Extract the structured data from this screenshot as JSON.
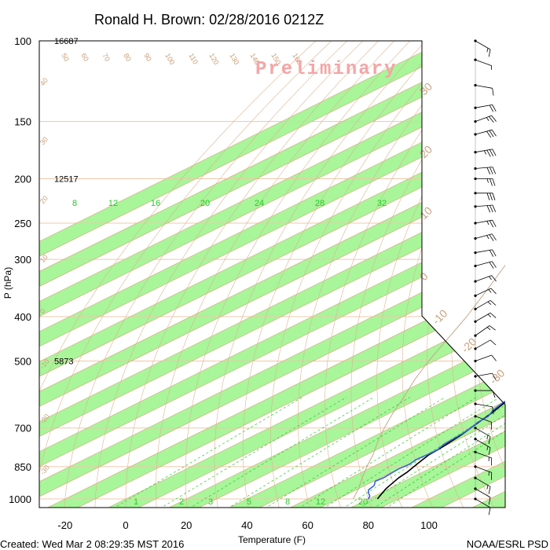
{
  "chart_data": {
    "type": "skew-t log-p sounding",
    "title": "Ronald H. Brown: 02/28/2016 0212Z",
    "xlabel": "Temperature (F)",
    "ylabel": "P (hPa)",
    "watermark": "Preliminary",
    "footer_left": "Created: Wed Mar  2 08:29:35 MST 2016",
    "footer_right": "NOAA/ESRL PSD",
    "xlim": [
      -27,
      113
    ],
    "ylim": [
      1050,
      100
    ],
    "x_ticks": [
      -20,
      0,
      20,
      40,
      60,
      80,
      100
    ],
    "y_ticks": [
      100,
      150,
      200,
      250,
      300,
      400,
      500,
      700,
      850,
      1000
    ],
    "grid": "on",
    "height_labels": [
      {
        "p": 100,
        "text": "16687"
      },
      {
        "p": 200,
        "text": "12517"
      },
      {
        "p": 500,
        "text": "5873"
      }
    ],
    "isotherm_labels_top": [
      "50",
      "60",
      "70",
      "80",
      "90",
      "100",
      "110",
      "120",
      "130",
      "140",
      "150",
      "160"
    ],
    "isotherm_labels_right": [
      "30",
      "20",
      "10",
      "0",
      "-10",
      "-20",
      "-30"
    ],
    "dry_adiabat_labels_left": [
      "40",
      "30",
      "20",
      "10",
      "0",
      "-10",
      "-20",
      "-30"
    ],
    "mixing_ratio_labels_upper": [
      "8",
      "12",
      "16",
      "20",
      "24",
      "28",
      "32"
    ],
    "mixing_ratio_labels_lower": [
      "1",
      "2",
      "3",
      "5",
      "8",
      "12",
      "20"
    ],
    "series": [
      {
        "role": "temperature",
        "color": "#000000",
        "points": [
          [
            1000,
            83
          ],
          [
            975,
            81
          ],
          [
            950,
            79
          ],
          [
            925,
            77.5
          ],
          [
            900,
            76
          ],
          [
            875,
            75
          ],
          [
            850,
            73.5
          ],
          [
            825,
            72
          ],
          [
            800,
            70.5
          ],
          [
            775,
            70
          ],
          [
            750,
            69
          ],
          [
            725,
            68
          ],
          [
            700,
            66.5
          ],
          [
            675,
            65
          ],
          [
            650,
            63.5
          ],
          [
            625,
            61.5
          ],
          [
            600,
            59.5
          ],
          [
            575,
            57.5
          ],
          [
            550,
            55
          ],
          [
            525,
            53
          ],
          [
            500,
            51
          ],
          [
            475,
            48.5
          ],
          [
            450,
            45.5
          ],
          [
            425,
            42.5
          ],
          [
            400,
            39.5
          ],
          [
            375,
            36
          ],
          [
            350,
            32
          ],
          [
            325,
            28.5
          ],
          [
            300,
            24.5
          ],
          [
            275,
            20
          ],
          [
            250,
            15.5
          ],
          [
            225,
            10.5
          ],
          [
            200,
            5
          ],
          [
            185,
            0
          ],
          [
            175,
            -4
          ],
          [
            165,
            -10
          ],
          [
            155,
            -15
          ],
          [
            150,
            -17.5
          ],
          [
            140,
            -24
          ],
          [
            130,
            -31
          ],
          [
            125,
            -35
          ],
          [
            120,
            -40
          ],
          [
            115,
            -44
          ],
          [
            110,
            -49
          ],
          [
            105,
            -55
          ],
          [
            100,
            -60
          ]
        ]
      },
      {
        "role": "dewpoint",
        "color": "#3a63d8",
        "points": [
          [
            1000,
            80
          ],
          [
            985,
            78.5
          ],
          [
            970,
            76
          ],
          [
            955,
            74
          ],
          [
            935,
            73
          ],
          [
            915,
            70.5
          ],
          [
            900,
            71
          ],
          [
            880,
            70.5
          ],
          [
            860,
            70
          ],
          [
            840,
            70.5
          ],
          [
            820,
            69.5
          ],
          [
            800,
            70
          ],
          [
            780,
            70
          ],
          [
            760,
            68.5
          ],
          [
            740,
            68
          ],
          [
            720,
            67.5
          ],
          [
            700,
            66.5
          ],
          [
            680,
            65
          ],
          [
            660,
            64.5
          ],
          [
            640,
            62
          ],
          [
            620,
            60.5
          ],
          [
            600,
            59.5
          ],
          [
            590,
            58.5
          ],
          [
            570,
            60.5
          ],
          [
            555,
            58
          ],
          [
            540,
            60.5
          ],
          [
            525,
            60
          ],
          [
            510,
            55.5
          ],
          [
            500,
            60
          ],
          [
            490,
            52
          ],
          [
            480,
            56
          ],
          [
            470,
            49
          ],
          [
            465,
            42
          ],
          [
            460,
            47
          ],
          [
            450,
            49.5
          ],
          [
            445,
            40
          ],
          [
            440,
            46
          ],
          [
            430,
            47
          ],
          [
            425,
            41
          ],
          [
            420,
            45
          ],
          [
            410,
            48
          ],
          [
            405,
            38
          ],
          [
            400,
            43
          ],
          [
            395,
            36
          ],
          [
            390,
            32
          ],
          [
            385,
            26
          ],
          [
            380,
            33
          ],
          [
            375,
            27
          ],
          [
            370,
            24
          ],
          [
            365,
            28
          ],
          [
            360,
            29
          ],
          [
            355,
            22
          ],
          [
            350,
            27
          ],
          [
            345,
            24
          ],
          [
            340,
            25
          ],
          [
            335,
            21
          ],
          [
            330,
            27
          ],
          [
            325,
            23
          ],
          [
            320,
            27
          ],
          [
            315,
            24
          ],
          [
            310,
            22
          ],
          [
            305,
            28
          ],
          [
            300,
            33
          ],
          [
            295,
            31
          ],
          [
            290,
            27
          ],
          [
            285,
            25
          ],
          [
            280,
            26
          ],
          [
            275,
            21
          ],
          [
            270,
            22
          ],
          [
            260,
            20
          ],
          [
            250,
            16
          ],
          [
            240,
            13
          ],
          [
            230,
            11
          ],
          [
            220,
            9
          ],
          [
            210,
            5
          ],
          [
            200,
            2
          ],
          [
            190,
            -1
          ],
          [
            180,
            -3
          ],
          [
            170,
            -6
          ],
          [
            162,
            -14
          ],
          [
            155,
            -20
          ],
          [
            150,
            -24
          ],
          [
            147,
            -22
          ],
          [
            143,
            -28
          ],
          [
            138,
            -31
          ],
          [
            133,
            -36
          ],
          [
            128,
            -40
          ],
          [
            124,
            -44
          ],
          [
            120,
            -46
          ],
          [
            116,
            -50
          ],
          [
            112,
            -54
          ],
          [
            108,
            -57
          ],
          [
            104,
            -60
          ],
          [
            100,
            -62
          ]
        ]
      },
      {
        "role": "parcel",
        "color": "#c8a98a",
        "points": [
          [
            1000,
            75
          ],
          [
            950,
            70
          ],
          [
            900,
            64
          ],
          [
            850,
            58
          ],
          [
            800,
            52
          ],
          [
            750,
            45
          ],
          [
            700,
            38
          ],
          [
            650,
            31
          ],
          [
            600,
            24
          ],
          [
            550,
            16
          ],
          [
            500,
            8
          ],
          [
            450,
            0
          ],
          [
            400,
            -9
          ],
          [
            350,
            -20
          ],
          [
            300,
            -33
          ],
          [
            250,
            -50
          ],
          [
            225,
            -59
          ],
          [
            220,
            -59
          ]
        ]
      }
    ],
    "wind_barbs": [
      {
        "p": 100,
        "dir": 300,
        "kt": 15
      },
      {
        "p": 110,
        "dir": 290,
        "kt": 5
      },
      {
        "p": 125,
        "dir": 280,
        "kt": 10
      },
      {
        "p": 140,
        "dir": 260,
        "kt": 20
      },
      {
        "p": 150,
        "dir": 250,
        "kt": 25
      },
      {
        "p": 160,
        "dir": 255,
        "kt": 30
      },
      {
        "p": 175,
        "dir": 260,
        "kt": 35
      },
      {
        "p": 190,
        "dir": 265,
        "kt": 30
      },
      {
        "p": 200,
        "dir": 270,
        "kt": 25
      },
      {
        "p": 215,
        "dir": 270,
        "kt": 30
      },
      {
        "p": 230,
        "dir": 265,
        "kt": 30
      },
      {
        "p": 250,
        "dir": 260,
        "kt": 25
      },
      {
        "p": 270,
        "dir": 255,
        "kt": 25
      },
      {
        "p": 290,
        "dir": 260,
        "kt": 20
      },
      {
        "p": 310,
        "dir": 255,
        "kt": 20
      },
      {
        "p": 335,
        "dir": 250,
        "kt": 15
      },
      {
        "p": 360,
        "dir": 245,
        "kt": 15
      },
      {
        "p": 385,
        "dir": 240,
        "kt": 15
      },
      {
        "p": 410,
        "dir": 240,
        "kt": 15
      },
      {
        "p": 440,
        "dir": 235,
        "kt": 15
      },
      {
        "p": 470,
        "dir": 240,
        "kt": 10
      },
      {
        "p": 500,
        "dir": 250,
        "kt": 10
      },
      {
        "p": 540,
        "dir": 260,
        "kt": 10
      },
      {
        "p": 580,
        "dir": 270,
        "kt": 10
      },
      {
        "p": 620,
        "dir": 280,
        "kt": 10
      },
      {
        "p": 660,
        "dir": 290,
        "kt": 10
      },
      {
        "p": 700,
        "dir": 300,
        "kt": 15
      },
      {
        "p": 740,
        "dir": 300,
        "kt": 15
      },
      {
        "p": 790,
        "dir": 290,
        "kt": 15
      },
      {
        "p": 850,
        "dir": 290,
        "kt": 15
      },
      {
        "p": 900,
        "dir": 300,
        "kt": 15
      },
      {
        "p": 950,
        "dir": 300,
        "kt": 10
      },
      {
        "p": 1000,
        "dir": 300,
        "kt": 10
      }
    ],
    "colors": {
      "moist_band": "#a8f59a",
      "isotherm": "#d9a57a",
      "isobar": "#efc9a8",
      "dry_adiabat": "#dcb48f",
      "mixing_ratio": "#22cc22",
      "temperature": "#000000",
      "dewpoint": "#3a63d8",
      "parcel": "#c8a98a",
      "watermark": "#f4a6a6"
    }
  }
}
